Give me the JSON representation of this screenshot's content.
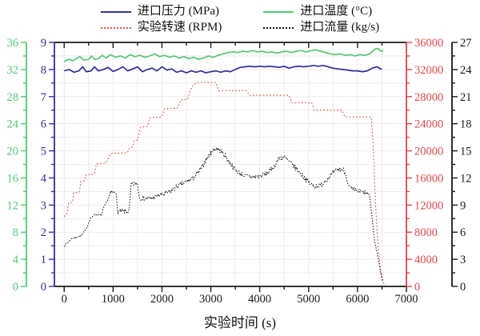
{
  "chart_data": {
    "type": "line",
    "title": "",
    "xlabel": "实验时间 (s)",
    "xlim": [
      -200,
      7000
    ],
    "x_major_ticks": [
      0,
      1000,
      2000,
      3000,
      4000,
      5000,
      6000,
      7000
    ],
    "x_minor_step": 500,
    "grid": {
      "show": true,
      "x_step": 500,
      "y_step": 0.5,
      "color": "#f2e3e3"
    },
    "axes": {
      "pressure": {
        "label": "进口压力 (MPa)",
        "unit": "MPa",
        "color": "#30309a",
        "lim": [
          0,
          9
        ],
        "major_ticks": [
          0,
          1,
          2,
          3,
          4,
          5,
          6,
          7,
          8,
          9
        ],
        "minor_step": 0.5,
        "position": "left-inner"
      },
      "temperature": {
        "label": "进口温度 (°C)",
        "unit": "°C",
        "color": "#54c873",
        "lim": [
          0,
          36
        ],
        "major_ticks": [
          0,
          4,
          8,
          12,
          16,
          20,
          24,
          28,
          32,
          36
        ],
        "minor_step": 2,
        "position": "left-outer"
      },
      "rpm": {
        "label": "实验转速 (RPM)",
        "unit": "RPM",
        "color": "#e04848",
        "lim": [
          0,
          36000
        ],
        "major_ticks": [
          0,
          4000,
          8000,
          12000,
          16000,
          20000,
          24000,
          28000,
          32000,
          36000
        ],
        "minor_step": 2000,
        "position": "right-inner"
      },
      "flow": {
        "label": "进口流量 (kg/s)",
        "unit": "kg/s",
        "color": "#1a1a1a",
        "lim": [
          0,
          27
        ],
        "major_ticks": [
          0,
          3,
          6,
          9,
          12,
          15,
          18,
          21,
          24,
          27
        ],
        "minor_step": 1.5,
        "position": "right-outer"
      }
    },
    "series": [
      {
        "name": "进口压力 (MPa)",
        "axis": "pressure",
        "line": "solid",
        "color": "#30309a",
        "points": [
          [
            0,
            7.95
          ],
          [
            100,
            8.0
          ],
          [
            200,
            7.9
          ],
          [
            300,
            7.95
          ],
          [
            380,
            8.1
          ],
          [
            450,
            7.92
          ],
          [
            550,
            7.95
          ],
          [
            620,
            8.1
          ],
          [
            700,
            7.95
          ],
          [
            800,
            8.0
          ],
          [
            900,
            8.08
          ],
          [
            1000,
            7.93
          ],
          [
            1100,
            8.0
          ],
          [
            1200,
            8.1
          ],
          [
            1300,
            7.95
          ],
          [
            1400,
            8.02
          ],
          [
            1500,
            8.1
          ],
          [
            1600,
            7.92
          ],
          [
            1700,
            8.0
          ],
          [
            1800,
            8.05
          ],
          [
            1900,
            7.95
          ],
          [
            2000,
            8.1
          ],
          [
            2100,
            7.98
          ],
          [
            2200,
            8.02
          ],
          [
            2300,
            7.9
          ],
          [
            2400,
            7.95
          ],
          [
            2500,
            7.88
          ],
          [
            2600,
            7.95
          ],
          [
            2700,
            7.9
          ],
          [
            2800,
            7.95
          ],
          [
            2900,
            7.88
          ],
          [
            3000,
            7.92
          ],
          [
            3100,
            7.95
          ],
          [
            3200,
            7.9
          ],
          [
            3300,
            7.95
          ],
          [
            3400,
            7.92
          ],
          [
            3500,
            8.0
          ],
          [
            3600,
            8.08
          ],
          [
            3700,
            8.1
          ],
          [
            3800,
            8.12
          ],
          [
            3900,
            8.1
          ],
          [
            4000,
            8.12
          ],
          [
            4100,
            8.1
          ],
          [
            4200,
            8.12
          ],
          [
            4300,
            8.1
          ],
          [
            4400,
            8.08
          ],
          [
            4500,
            8.12
          ],
          [
            4600,
            8.05
          ],
          [
            4700,
            8.1
          ],
          [
            4800,
            8.12
          ],
          [
            4900,
            8.1
          ],
          [
            5000,
            8.12
          ],
          [
            5100,
            8.15
          ],
          [
            5200,
            8.12
          ],
          [
            5300,
            8.15
          ],
          [
            5400,
            8.1
          ],
          [
            5500,
            8.05
          ],
          [
            5600,
            8.02
          ],
          [
            5700,
            8.0
          ],
          [
            5800,
            7.98
          ],
          [
            5900,
            7.95
          ],
          [
            6000,
            7.95
          ],
          [
            6100,
            7.92
          ],
          [
            6200,
            7.95
          ],
          [
            6300,
            8.05
          ],
          [
            6400,
            8.1
          ],
          [
            6500,
            8.0
          ]
        ]
      },
      {
        "name": "进口温度 (°C)",
        "axis": "temperature",
        "line": "solid",
        "color": "#54c873",
        "points": [
          [
            0,
            33.2
          ],
          [
            100,
            33.5
          ],
          [
            180,
            33.3
          ],
          [
            250,
            33.6
          ],
          [
            320,
            33.9
          ],
          [
            400,
            33.4
          ],
          [
            500,
            33.5
          ],
          [
            560,
            34.0
          ],
          [
            620,
            33.5
          ],
          [
            700,
            33.6
          ],
          [
            780,
            34.1
          ],
          [
            850,
            33.7
          ],
          [
            950,
            34.2
          ],
          [
            1050,
            33.8
          ],
          [
            1150,
            34.0
          ],
          [
            1250,
            33.7
          ],
          [
            1350,
            34.2
          ],
          [
            1450,
            33.9
          ],
          [
            1550,
            34.1
          ],
          [
            1650,
            33.8
          ],
          [
            1750,
            34.0
          ],
          [
            1850,
            34.3
          ],
          [
            1950,
            33.9
          ],
          [
            2050,
            34.1
          ],
          [
            2150,
            33.8
          ],
          [
            2250,
            34.0
          ],
          [
            2350,
            33.7
          ],
          [
            2450,
            33.9
          ],
          [
            2550,
            33.6
          ],
          [
            2650,
            33.8
          ],
          [
            2750,
            33.5
          ],
          [
            2850,
            33.7
          ],
          [
            2950,
            34.0
          ],
          [
            3050,
            33.8
          ],
          [
            3150,
            34.1
          ],
          [
            3250,
            34.3
          ],
          [
            3350,
            34.5
          ],
          [
            3450,
            34.6
          ],
          [
            3550,
            34.5
          ],
          [
            3650,
            34.7
          ],
          [
            3750,
            34.6
          ],
          [
            3850,
            34.8
          ],
          [
            3950,
            34.6
          ],
          [
            4050,
            34.7
          ],
          [
            4150,
            34.5
          ],
          [
            4250,
            34.6
          ],
          [
            4350,
            34.4
          ],
          [
            4450,
            34.6
          ],
          [
            4550,
            34.7
          ],
          [
            4650,
            34.5
          ],
          [
            4750,
            34.7
          ],
          [
            4850,
            34.8
          ],
          [
            4950,
            34.6
          ],
          [
            5050,
            34.8
          ],
          [
            5150,
            34.9
          ],
          [
            5250,
            34.7
          ],
          [
            5350,
            34.5
          ],
          [
            5450,
            34.3
          ],
          [
            5550,
            34.2
          ],
          [
            5650,
            34.3
          ],
          [
            5750,
            34.1
          ],
          [
            5850,
            34.2
          ],
          [
            5950,
            34.0
          ],
          [
            6050,
            34.2
          ],
          [
            6150,
            34.1
          ],
          [
            6250,
            34.3
          ],
          [
            6350,
            35.0
          ],
          [
            6420,
            35.1
          ],
          [
            6480,
            34.7
          ],
          [
            6530,
            34.8
          ]
        ]
      },
      {
        "name": "实验转速 (RPM)",
        "axis": "rpm",
        "line": "dotted",
        "color": "#e05555",
        "points": [
          [
            0,
            10300
          ],
          [
            60,
            10800
          ],
          [
            90,
            12300
          ],
          [
            170,
            12400
          ],
          [
            200,
            13800
          ],
          [
            310,
            13900
          ],
          [
            340,
            15500
          ],
          [
            420,
            15600
          ],
          [
            450,
            16500
          ],
          [
            620,
            16600
          ],
          [
            660,
            18100
          ],
          [
            850,
            18200
          ],
          [
            950,
            19600
          ],
          [
            1290,
            19700
          ],
          [
            1340,
            20500
          ],
          [
            1400,
            20600
          ],
          [
            1430,
            21500
          ],
          [
            1500,
            21600
          ],
          [
            1530,
            22500
          ],
          [
            1560,
            23500
          ],
          [
            1700,
            23600
          ],
          [
            1750,
            24900
          ],
          [
            2000,
            25000
          ],
          [
            2050,
            26200
          ],
          [
            2320,
            26300
          ],
          [
            2380,
            27500
          ],
          [
            2520,
            27600
          ],
          [
            2560,
            28600
          ],
          [
            2620,
            29500
          ],
          [
            2700,
            30100
          ],
          [
            3100,
            30100
          ],
          [
            3160,
            28900
          ],
          [
            3730,
            28900
          ],
          [
            3790,
            28200
          ],
          [
            4600,
            28200
          ],
          [
            4660,
            27100
          ],
          [
            5060,
            27100
          ],
          [
            5120,
            26000
          ],
          [
            5680,
            26000
          ],
          [
            5740,
            25000
          ],
          [
            6280,
            25000
          ],
          [
            6320,
            21000
          ],
          [
            6370,
            12000
          ],
          [
            6420,
            6000
          ],
          [
            6470,
            2500
          ],
          [
            6520,
            800
          ],
          [
            6545,
            300
          ]
        ]
      },
      {
        "name": "进口流量 (kg/s)",
        "axis": "flow",
        "line": "dotted",
        "color": "#1a1a1a",
        "noise": {
          "amp_before": 0.08,
          "amp_after": 0.26,
          "t_split": 900,
          "step": 12
        },
        "points": [
          [
            0,
            4.5
          ],
          [
            160,
            5.3
          ],
          [
            350,
            5.6
          ],
          [
            460,
            6.5
          ],
          [
            540,
            7.5
          ],
          [
            600,
            7.9
          ],
          [
            760,
            7.9
          ],
          [
            800,
            8.6
          ],
          [
            950,
            10.3
          ],
          [
            1060,
            10.5
          ],
          [
            1090,
            8.3
          ],
          [
            1330,
            8.3
          ],
          [
            1370,
            11.3
          ],
          [
            1500,
            11.4
          ],
          [
            1540,
            9.8
          ],
          [
            1780,
            9.7
          ],
          [
            1900,
            10.0
          ],
          [
            2050,
            10.2
          ],
          [
            2200,
            10.6
          ],
          [
            2350,
            11.2
          ],
          [
            2500,
            11.6
          ],
          [
            2650,
            12.0
          ],
          [
            2800,
            13.0
          ],
          [
            2900,
            14.0
          ],
          [
            3000,
            14.8
          ],
          [
            3100,
            15.3
          ],
          [
            3200,
            15.0
          ],
          [
            3300,
            14.4
          ],
          [
            3400,
            13.6
          ],
          [
            3500,
            12.9
          ],
          [
            3600,
            12.5
          ],
          [
            3700,
            12.2
          ],
          [
            3850,
            12.1
          ],
          [
            4000,
            12.2
          ],
          [
            4150,
            12.5
          ],
          [
            4300,
            13.3
          ],
          [
            4400,
            14.2
          ],
          [
            4500,
            14.3
          ],
          [
            4600,
            13.8
          ],
          [
            4700,
            13.3
          ],
          [
            4800,
            12.7
          ],
          [
            4900,
            12.1
          ],
          [
            5000,
            11.5
          ],
          [
            5100,
            11.1
          ],
          [
            5250,
            11.2
          ],
          [
            5400,
            12.0
          ],
          [
            5500,
            12.6
          ],
          [
            5600,
            12.9
          ],
          [
            5700,
            13.0
          ],
          [
            5760,
            12.4
          ],
          [
            5820,
            11.1
          ],
          [
            5900,
            10.7
          ],
          [
            6050,
            10.5
          ],
          [
            6200,
            10.3
          ],
          [
            6250,
            10.0
          ],
          [
            6300,
            7.5
          ],
          [
            6350,
            5.0
          ],
          [
            6420,
            3.2
          ],
          [
            6470,
            1.6
          ],
          [
            6520,
            0.5
          ]
        ]
      }
    ]
  }
}
